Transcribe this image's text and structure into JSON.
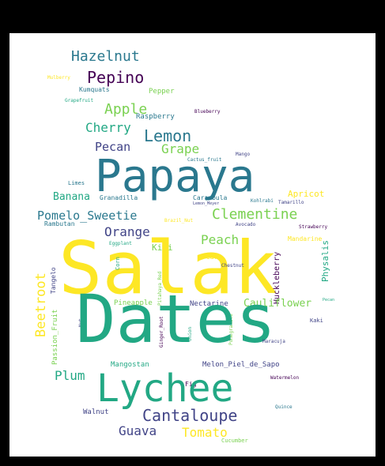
{
  "colors": {
    "background_outer": "#000000",
    "background_inner": "#ffffff",
    "palette": [
      "#fde725",
      "#22a884",
      "#2a788e",
      "#414487",
      "#440154",
      "#7ad151"
    ]
  },
  "words": [
    {
      "text": "Hazelnut"
    },
    {
      "text": "Pepino"
    },
    {
      "text": "Pepper"
    },
    {
      "text": "Blueberry"
    },
    {
      "text": "Kumquats"
    },
    {
      "text": "Grapefruit"
    },
    {
      "text": "Raspberry"
    },
    {
      "text": "Apple"
    },
    {
      "text": "Cherry"
    },
    {
      "text": "Lemon"
    },
    {
      "text": "Pecan"
    },
    {
      "text": "Grape"
    },
    {
      "text": "Cactus_fruit"
    },
    {
      "text": "Mango"
    },
    {
      "text": "Papaya"
    },
    {
      "text": "Limes"
    },
    {
      "text": "Banana"
    },
    {
      "text": "Granadilla"
    },
    {
      "text": "Carambula"
    },
    {
      "text": "Kohlrabi"
    },
    {
      "text": "Tamarillo"
    },
    {
      "text": "Apricot"
    },
    {
      "text": "Pomelo_Sweetie"
    },
    {
      "text": "Clementine"
    },
    {
      "text": "Rambutan"
    },
    {
      "text": "Brazil_Nut"
    },
    {
      "text": "Avocado"
    },
    {
      "text": "Strawberry"
    },
    {
      "text": "Orange"
    },
    {
      "text": "Peach"
    },
    {
      "text": "Mandarine"
    },
    {
      "text": "Eggplant"
    },
    {
      "text": "Kiwi"
    },
    {
      "text": "Salak"
    },
    {
      "text": "Pear"
    },
    {
      "text": "Chestnut"
    },
    {
      "text": "Beetroot"
    },
    {
      "text": "Tangelo"
    },
    {
      "text": "Corn"
    },
    {
      "text": "Huckleberry"
    },
    {
      "text": "Physalis"
    },
    {
      "text": "Pineapple"
    },
    {
      "text": "Fig"
    },
    {
      "text": "Nectarine"
    },
    {
      "text": "Cauliflower"
    },
    {
      "text": "Pomegranate"
    },
    {
      "text": "Passion_Fruit"
    },
    {
      "text": "Dates"
    },
    {
      "text": "Kaki"
    },
    {
      "text": "Nut"
    },
    {
      "text": "Melon_Piel_de_Sapo"
    },
    {
      "text": "Mangostan"
    },
    {
      "text": "Plum"
    },
    {
      "text": "Watermelon"
    },
    {
      "text": "Lychee"
    },
    {
      "text": "Walnut"
    },
    {
      "text": "Quince"
    },
    {
      "text": "Cantaloupe"
    },
    {
      "text": "Guava"
    },
    {
      "text": "Tomato"
    },
    {
      "text": "Cucumber"
    },
    {
      "text": "Maracuja"
    },
    {
      "text": "Mulberry"
    },
    {
      "text": "Pitahaya_Red"
    },
    {
      "text": "Ginger_Root"
    },
    {
      "text": "Onion"
    },
    {
      "text": "Lemon_Meyer"
    }
  ]
}
